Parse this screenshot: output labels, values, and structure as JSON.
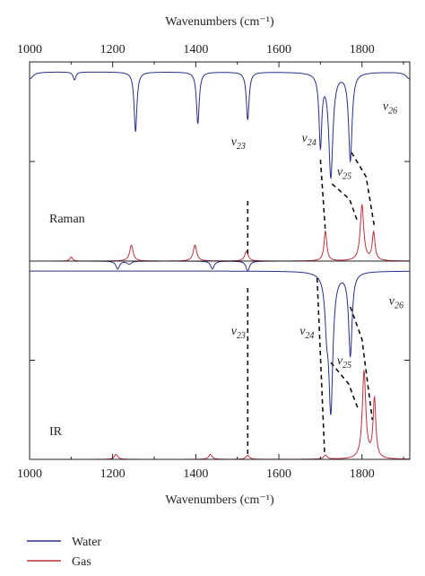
{
  "chart_data": {
    "type": "line",
    "xlabel": "Wavenumbers (cm⁻¹)",
    "xlim": [
      1000,
      1915
    ],
    "x_ticks": [
      1000,
      1200,
      1400,
      1600,
      1800
    ],
    "x_tick_labels": [
      "1000",
      "1200",
      "1400",
      "1600",
      "1800"
    ],
    "panels": [
      {
        "name": "Raman",
        "label": "Raman",
        "series": [
          {
            "name": "Water",
            "color": "#2b2f8a",
            "baseline": 0.95,
            "direction": -1,
            "peaks": [
              {
                "x": 1000,
                "h": 0.035,
                "w": 10
              },
              {
                "x": 1108,
                "h": 0.04,
                "w": 4
              },
              {
                "x": 1255,
                "h": 0.3,
                "w": 4
              },
              {
                "x": 1405,
                "h": 0.26,
                "w": 4
              },
              {
                "x": 1525,
                "h": 0.24,
                "w": 4
              },
              {
                "x": 1700,
                "h": 0.36,
                "w": 4
              },
              {
                "x": 1725,
                "h": 0.52,
                "w": 6
              },
              {
                "x": 1772,
                "h": 0.44,
                "w": 5
              },
              {
                "x": 1915,
                "h": 0.035,
                "w": 10
              }
            ]
          },
          {
            "name": "Gas",
            "color": "#c0303c",
            "baseline": 0,
            "direction": 1,
            "peaks": [
              {
                "x": 1100,
                "h": 0.02,
                "w": 4
              },
              {
                "x": 1245,
                "h": 0.08,
                "w": 5
              },
              {
                "x": 1398,
                "h": 0.08,
                "w": 5
              },
              {
                "x": 1522,
                "h": 0.05,
                "w": 5
              },
              {
                "x": 1712,
                "h": 0.15,
                "w": 4
              },
              {
                "x": 1800,
                "h": 0.28,
                "w": 5
              },
              {
                "x": 1828,
                "h": 0.14,
                "w": 4
              }
            ]
          },
          {
            "name": "Water",
            "color": "#2b2f8a",
            "baseline": 0,
            "direction": -1,
            "peaks": [
              {
                "x": 1212,
                "h": 0.04,
                "w": 5
              },
              {
                "x": 1240,
                "h": 0.015,
                "w": 6
              },
              {
                "x": 1440,
                "h": 0.04,
                "w": 5
              },
              {
                "x": 1525,
                "h": 0.05,
                "w": 5
              }
            ]
          }
        ],
        "annotations": [
          {
            "text": "v",
            "sub": "23",
            "x": 1485,
            "y": 0.58
          },
          {
            "text": "v",
            "sub": "24",
            "x": 1655,
            "y": 0.6
          },
          {
            "text": "v",
            "sub": "25",
            "x": 1740,
            "y": 0.43
          },
          {
            "text": "v",
            "sub": "26",
            "x": 1850,
            "y": 0.76
          }
        ]
      },
      {
        "name": "IR",
        "label": "IR",
        "series": [
          {
            "name": "Water",
            "color": "#2b2f8a",
            "baseline": 0.95,
            "direction": -1,
            "peaks": [
              {
                "x": 1715,
                "h": 0.2,
                "w": 5
              },
              {
                "x": 1725,
                "h": 0.68,
                "w": 6
              },
              {
                "x": 1772,
                "h": 0.42,
                "w": 5
              }
            ]
          },
          {
            "name": "Gas",
            "color": "#c0303c",
            "baseline": 0,
            "direction": 1,
            "peaks": [
              {
                "x": 1208,
                "h": 0.025,
                "w": 5
              },
              {
                "x": 1435,
                "h": 0.025,
                "w": 5
              },
              {
                "x": 1525,
                "h": 0.02,
                "w": 5
              },
              {
                "x": 1712,
                "h": 0.02,
                "w": 5
              },
              {
                "x": 1805,
                "h": 0.44,
                "w": 5
              },
              {
                "x": 1830,
                "h": 0.3,
                "w": 4
              }
            ]
          }
        ],
        "annotations": [
          {
            "text": "v",
            "sub": "23",
            "x": 1485,
            "y": 0.63
          },
          {
            "text": "v",
            "sub": "24",
            "x": 1650,
            "y": 0.63
          },
          {
            "text": "v",
            "sub": "25",
            "x": 1740,
            "y": 0.48
          },
          {
            "text": "v",
            "sub": "26",
            "x": 1865,
            "y": 0.78
          }
        ]
      }
    ],
    "legend": {
      "placement": "bottom-left",
      "entries": [
        {
          "name": "Water",
          "color": "#2b2f8a"
        },
        {
          "name": "Gas",
          "color": "#c0303c"
        }
      ]
    }
  }
}
